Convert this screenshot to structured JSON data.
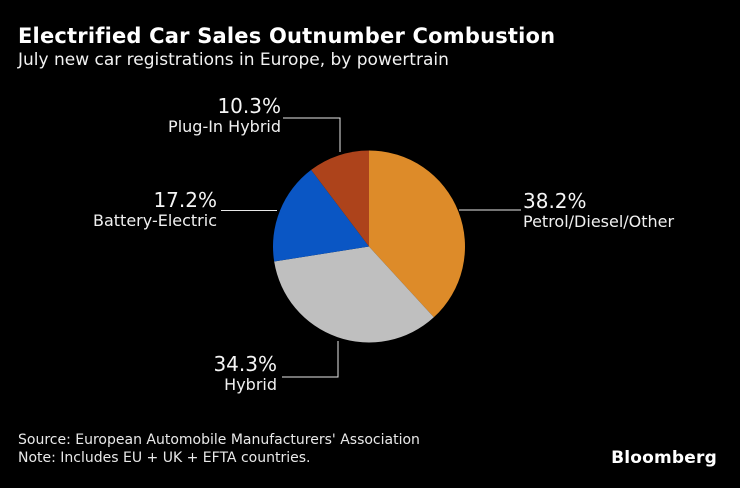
{
  "header": {
    "title": "Electrified Car Sales Outnumber Combustion",
    "subtitle": "July new car registrations in Europe, by powertrain"
  },
  "chart_data": {
    "type": "pie",
    "title": "Electrified Car Sales Outnumber Combustion",
    "subtitle": "July new car registrations in Europe, by powertrain",
    "unit": "%",
    "direction": "clockwise",
    "start_angle_deg": 0,
    "legend_position": "callout-labels",
    "slices": [
      {
        "label": "Petrol/Diesel/Other",
        "value": 38.2,
        "display": "38.2%",
        "color": "#DD8B29"
      },
      {
        "label": "Hybrid",
        "value": 34.3,
        "display": "34.3%",
        "color": "#BFBFBF"
      },
      {
        "label": "Battery-Electric",
        "value": 17.2,
        "display": "17.2%",
        "color": "#0A56C4"
      },
      {
        "label": "Plug-In Hybrid",
        "value": 10.3,
        "display": "10.3%",
        "color": "#AD431B"
      }
    ]
  },
  "footer": {
    "source": "Source: European Automobile Manufacturers' Association",
    "note": "Note: Includes EU + UK + EFTA countries.",
    "brand": "Bloomberg"
  },
  "colors": {
    "background": "#000000",
    "title_text": "#FFFFFF",
    "label_text": "#F0F0F0",
    "callout_line": "#E8E8E8"
  }
}
